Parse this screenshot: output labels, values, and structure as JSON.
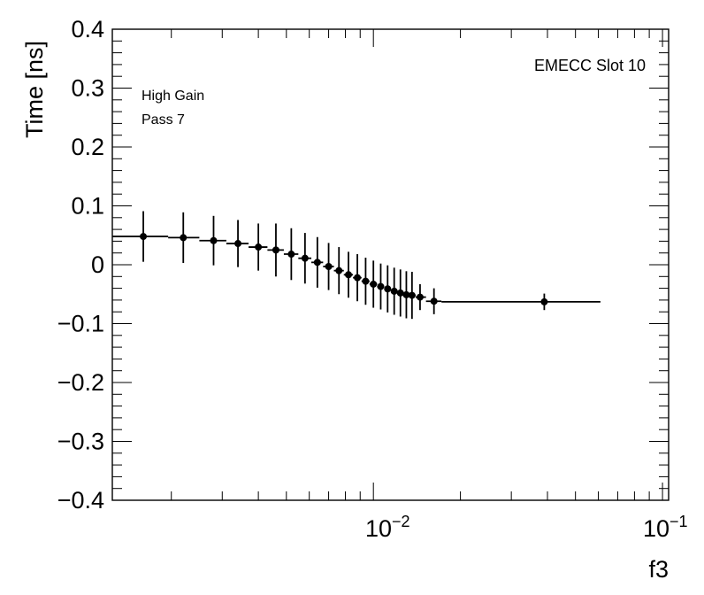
{
  "chart_data": {
    "type": "scatter",
    "xlabel": "f3",
    "ylabel": "Time [ns]",
    "xscale": "log",
    "xlim": [
      0.00125,
      0.105
    ],
    "ylim": [
      -0.4,
      0.4
    ],
    "x_tick_labels": [
      {
        "value": 0.01,
        "base": "10",
        "exp": "−2"
      },
      {
        "value": 0.1,
        "base": "10",
        "exp": "−1"
      }
    ],
    "y_ticks": [
      0.4,
      0.3,
      0.2,
      0.1,
      0,
      -0.1,
      -0.2,
      -0.3,
      -0.4
    ],
    "y_tick_labels": [
      "0.4",
      "0.3",
      "0.2",
      "0.1",
      "0",
      "−0.1",
      "−0.2",
      "−0.3",
      "−0.4"
    ],
    "annotations": {
      "top_right": "EMECC Slot 10",
      "line1": "High Gain",
      "line2": "Pass 7"
    },
    "series": [
      {
        "points": [
          {
            "x": 0.0016,
            "y": 0.048,
            "err": 0.043,
            "xlo": 0.00125,
            "xhi": 0.00195
          },
          {
            "x": 0.0022,
            "y": 0.046,
            "err": 0.043,
            "xlo": 0.00195,
            "xhi": 0.0025
          },
          {
            "x": 0.0028,
            "y": 0.041,
            "err": 0.042,
            "xlo": 0.0025,
            "xhi": 0.0031
          },
          {
            "x": 0.0034,
            "y": 0.036,
            "err": 0.04,
            "xlo": 0.0031,
            "xhi": 0.0037
          },
          {
            "x": 0.004,
            "y": 0.03,
            "err": 0.04,
            "xlo": 0.0037,
            "xhi": 0.0043
          },
          {
            "x": 0.0046,
            "y": 0.025,
            "err": 0.045,
            "xlo": 0.0043,
            "xhi": 0.0049
          },
          {
            "x": 0.0052,
            "y": 0.018,
            "err": 0.044,
            "xlo": 0.0049,
            "xhi": 0.0055
          },
          {
            "x": 0.0058,
            "y": 0.011,
            "err": 0.043,
            "xlo": 0.0055,
            "xhi": 0.0061
          },
          {
            "x": 0.0064,
            "y": 0.004,
            "err": 0.043,
            "xlo": 0.0061,
            "xhi": 0.0067
          },
          {
            "x": 0.007,
            "y": -0.003,
            "err": 0.04,
            "xlo": 0.0067,
            "xhi": 0.0073
          },
          {
            "x": 0.0076,
            "y": -0.01,
            "err": 0.04,
            "xlo": 0.0073,
            "xhi": 0.0079
          },
          {
            "x": 0.0082,
            "y": -0.017,
            "err": 0.039,
            "xlo": 0.0079,
            "xhi": 0.0085
          },
          {
            "x": 0.0088,
            "y": -0.022,
            "err": 0.04,
            "xlo": 0.0085,
            "xhi": 0.0091
          },
          {
            "x": 0.0094,
            "y": -0.028,
            "err": 0.04,
            "xlo": 0.0091,
            "xhi": 0.0097
          },
          {
            "x": 0.01,
            "y": -0.033,
            "err": 0.04,
            "xlo": 0.0097,
            "xhi": 0.0103
          },
          {
            "x": 0.0106,
            "y": -0.037,
            "err": 0.039,
            "xlo": 0.0103,
            "xhi": 0.0109
          },
          {
            "x": 0.0112,
            "y": -0.041,
            "err": 0.04,
            "xlo": 0.0109,
            "xhi": 0.0115
          },
          {
            "x": 0.0118,
            "y": -0.045,
            "err": 0.04,
            "xlo": 0.0115,
            "xhi": 0.0121
          },
          {
            "x": 0.0124,
            "y": -0.048,
            "err": 0.04,
            "xlo": 0.0121,
            "xhi": 0.0127
          },
          {
            "x": 0.013,
            "y": -0.051,
            "err": 0.04,
            "xlo": 0.0127,
            "xhi": 0.0133
          },
          {
            "x": 0.0136,
            "y": -0.052,
            "err": 0.04,
            "xlo": 0.0133,
            "xhi": 0.014
          },
          {
            "x": 0.0145,
            "y": -0.055,
            "err": 0.022,
            "xlo": 0.014,
            "xhi": 0.0152
          },
          {
            "x": 0.0162,
            "y": -0.062,
            "err": 0.022,
            "xlo": 0.0152,
            "xhi": 0.0172
          },
          {
            "x": 0.039,
            "y": -0.063,
            "err": 0.014,
            "xlo": 0.0172,
            "xhi": 0.061
          }
        ]
      }
    ]
  }
}
